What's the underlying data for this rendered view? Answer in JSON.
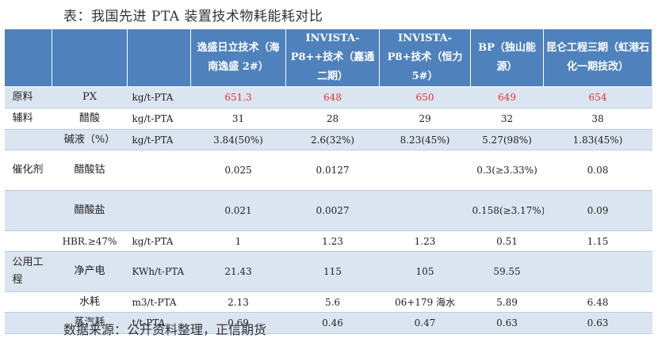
{
  "caption": "表：我国先进 PTA 装置技术物耗能耗对比",
  "source": "数据来源：公开资料整理，正信期货",
  "headers": [
    "",
    "",
    "",
    "逸盛日立技术（海南逸盛 2#）",
    "INVISTA-P8++技术（嘉通二期）",
    "INVISTA-P8+技术（恒力 5#）",
    "BP（独山能源）",
    "昆仑工程三期（虹港石化一期技改）"
  ],
  "rows": [
    {
      "group": "原料",
      "item": "PX",
      "unit": "kg/t-PTA",
      "values": [
        "651.3",
        "648",
        "650",
        "649",
        "654"
      ]
    },
    {
      "group": "辅料",
      "item": "醋酸",
      "unit": "kg/t-PTA",
      "values": [
        "31",
        "28",
        "29",
        "32",
        "38"
      ]
    },
    {
      "group": "",
      "item": "碱液（%）",
      "unit": "kg/t-PTA",
      "values": [
        "3.84(50%)",
        "2.6(32%)",
        "8.23(45%)",
        "5.27(98%)",
        "1.83(45%)"
      ]
    },
    {
      "group": "催化剂",
      "item": "醋酸钴",
      "unit": "",
      "values": [
        "0.025",
        "0.0127",
        "",
        "0.3(≥3.33%)",
        "0.08"
      ]
    },
    {
      "group": "",
      "item": "醋酸盐",
      "unit": "",
      "values": [
        "0.021",
        "0.0027",
        "",
        "0.158(≥3.17%)",
        "0.09"
      ]
    },
    {
      "group": "",
      "item": "HBR.≥47%",
      "unit": "kg/t-PTA",
      "values": [
        "1",
        "1.23",
        "1.23",
        "0.51",
        "1.15"
      ]
    },
    {
      "group": "公用工程",
      "item": "净产电",
      "unit": "KWh/t-PTA",
      "values": [
        "21.43",
        "115",
        "105",
        "59.55",
        ""
      ]
    },
    {
      "group": "",
      "item": "水耗",
      "unit": "m3/t-PTA",
      "values": [
        "2.13",
        "5.6",
        "06+179 海水",
        "5.89",
        "6.48"
      ]
    },
    {
      "group": "",
      "item": "蒸汽耗",
      "unit": "t/t-PTA",
      "values": [
        "0.69",
        "0.46",
        "0.47",
        "0.63",
        "0.63"
      ]
    }
  ]
}
